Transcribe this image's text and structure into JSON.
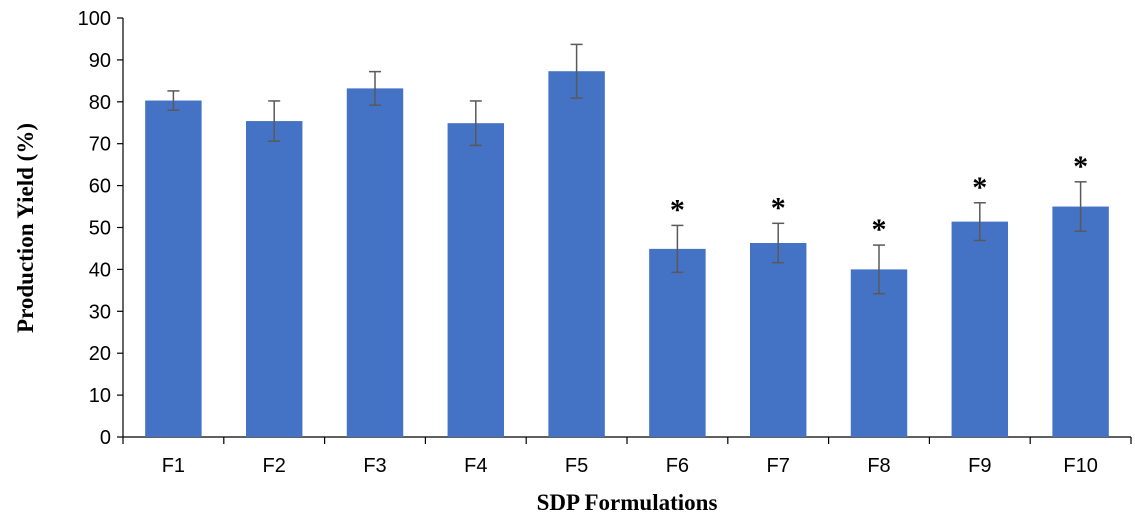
{
  "chart_data": {
    "type": "bar",
    "title": "",
    "xlabel": "SDP Formulations",
    "ylabel": "Production Yield (%)",
    "ylim": [
      0,
      100
    ],
    "yticks": [
      0,
      10,
      20,
      30,
      40,
      50,
      60,
      70,
      80,
      90,
      100
    ],
    "categories": [
      "F1",
      "F2",
      "F3",
      "F4",
      "F5",
      "F6",
      "F7",
      "F8",
      "F9",
      "F10"
    ],
    "series": [
      {
        "values": [
          80.3,
          75.4,
          83.2,
          74.9,
          87.3,
          44.9,
          46.3,
          40.0,
          51.4,
          55.0
        ],
        "error": [
          2.3,
          4.8,
          4.0,
          5.3,
          6.4,
          5.6,
          4.7,
          5.8,
          4.5,
          5.9
        ],
        "significance": [
          "",
          "",
          "",
          "",
          "",
          "*",
          "*",
          "*",
          "*",
          "*"
        ],
        "color": "#4472C4"
      }
    ],
    "grid": false,
    "legend": "none",
    "error_bar_color": "#595959"
  }
}
